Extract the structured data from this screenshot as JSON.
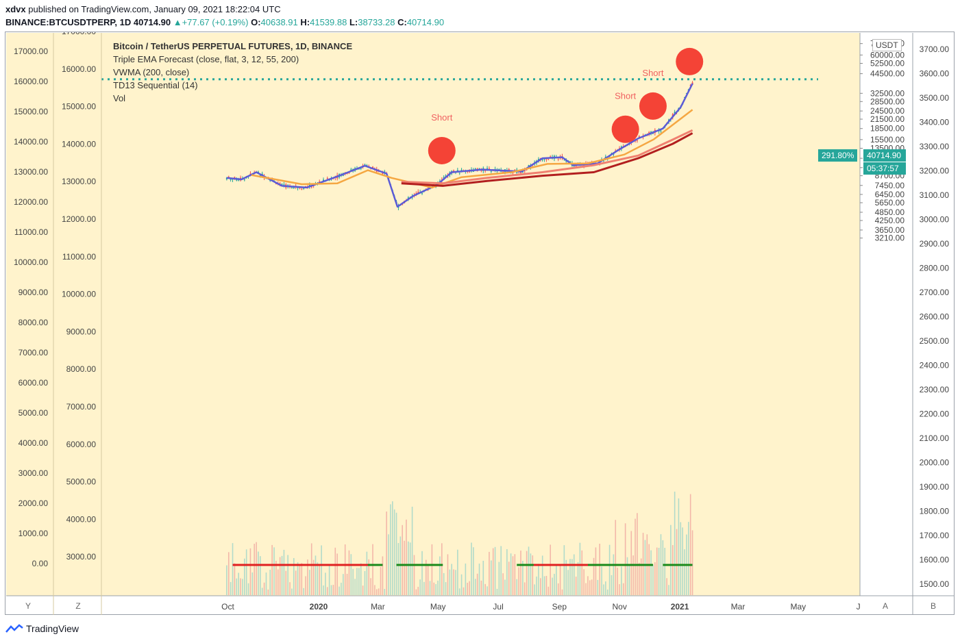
{
  "header": {
    "author": "xdvx",
    "published": "published on TradingView.com, January 09, 2021 18:22:04 UTC",
    "symbol": "BINANCE:BTCUSDTPERP, 1D",
    "last": "40714.90",
    "change": "+77.67 (+0.19%)",
    "open_label": "O:",
    "open": "40638.91",
    "high_label": "H:",
    "high": "41539.88",
    "low_label": "L:",
    "low": "38733.28",
    "close_label": "C:",
    "close": "40714.90"
  },
  "legend": {
    "title": "Bitcoin / TetherUS PERPETUAL FUTURES, 1D, BINANCE",
    "ind1": "Triple EMA Forecast (close, flat, 3, 12, 55, 200)",
    "ind2": "VWMA (200, close)",
    "ind3": "TD13 Sequential (14)",
    "ind4": "Vol"
  },
  "tags": {
    "percent": "291.80%",
    "price": "40714.90",
    "countdown": "05:37:57",
    "currency": "USDT"
  },
  "bottom": {
    "y": "Y",
    "z": "Z",
    "a": "A",
    "b": "B"
  },
  "footer": {
    "logo": "TradingView"
  },
  "colors": {
    "background": "#fff3cc",
    "up": "#26a69a",
    "down": "#ef5350",
    "blue": "#5b5bd6",
    "orange": "#f5a742",
    "salmon": "#f08070",
    "darkred": "#b21f1f",
    "price_line": "#26a69a"
  },
  "chart_data": {
    "type": "line",
    "title": "Bitcoin / TetherUS PERPETUAL FUTURES, 1D, BINANCE",
    "x_ticks": [
      "Oct",
      "2020",
      "Mar",
      "May",
      "Jul",
      "Sep",
      "Nov",
      "2021",
      "Mar",
      "May",
      "J"
    ],
    "left_axis_1": [
      "17000.00",
      "16000.00",
      "15000.00",
      "14000.00",
      "13000.00",
      "12000.00",
      "11000.00",
      "10000.00",
      "9000.00",
      "8000.00",
      "7000.00",
      "6000.00",
      "5000.00",
      "4000.00",
      "3000.00",
      "2000.00",
      "1000.00",
      "0.00"
    ],
    "left_axis_2": [
      "17000.00",
      "16000.00",
      "15000.00",
      "14000.00",
      "13000.00",
      "12000.00",
      "11000.00",
      "10000.00",
      "9000.00",
      "8000.00",
      "7000.00",
      "6000.00",
      "5000.00",
      "4000.00",
      "3000.00"
    ],
    "price_axis_log": [
      "84000.00",
      "72000.00",
      "60000.00",
      "52500.00",
      "44500.00",
      "32500.00",
      "28500.00",
      "24500.00",
      "21500.00",
      "18500.00",
      "15500.00",
      "13500.00",
      "11500.00",
      "9900.00",
      "8700.00",
      "7450.00",
      "6450.00",
      "5650.00",
      "4850.00",
      "4250.00",
      "3650.00",
      "3210.00"
    ],
    "right_axis": [
      "3700.00",
      "3600.00",
      "3500.00",
      "3400.00",
      "3300.00",
      "3200.00",
      "3100.00",
      "3000.00",
      "2900.00",
      "2800.00",
      "2700.00",
      "2600.00",
      "2500.00",
      "2400.00",
      "2300.00",
      "2200.00",
      "2100.00",
      "2000.00",
      "1900.00",
      "1800.00",
      "1700.00",
      "1600.00",
      "1500.00"
    ],
    "series": [
      {
        "name": "Triple EMA Forecast",
        "color": "#5b5bd6",
        "points": [
          [
            "2019-09-25",
            8400
          ],
          [
            "2019-10-10",
            8200
          ],
          [
            "2019-10-25",
            9200
          ],
          [
            "2019-11-20",
            7400
          ],
          [
            "2019-12-15",
            7200
          ],
          [
            "2020-01-15",
            8600
          ],
          [
            "2020-02-12",
            10200
          ],
          [
            "2020-03-05",
            9000
          ],
          [
            "2020-03-16",
            5300
          ],
          [
            "2020-04-01",
            6300
          ],
          [
            "2020-04-25",
            7500
          ],
          [
            "2020-05-10",
            9200
          ],
          [
            "2020-06-10",
            9600
          ],
          [
            "2020-07-20",
            9300
          ],
          [
            "2020-08-10",
            11500
          ],
          [
            "2020-08-30",
            11700
          ],
          [
            "2020-09-10",
            10300
          ],
          [
            "2020-10-05",
            10600
          ],
          [
            "2020-10-25",
            13000
          ],
          [
            "2020-11-15",
            15800
          ],
          [
            "2020-12-10",
            18500
          ],
          [
            "2020-12-28",
            26000
          ],
          [
            "2021-01-09",
            38000
          ]
        ]
      },
      {
        "name": "Triple EMA long",
        "color": "#f5a742",
        "points": [
          [
            "2019-10-20",
            8800
          ],
          [
            "2019-12-10",
            7600
          ],
          [
            "2020-01-15",
            7700
          ],
          [
            "2020-02-15",
            9500
          ],
          [
            "2020-03-10",
            8400
          ],
          [
            "2020-04-20",
            7200
          ],
          [
            "2020-05-20",
            8500
          ],
          [
            "2020-07-10",
            9200
          ],
          [
            "2020-08-15",
            10500
          ],
          [
            "2020-09-25",
            10600
          ],
          [
            "2020-11-01",
            12200
          ],
          [
            "2020-12-01",
            15600
          ],
          [
            "2021-01-09",
            25000
          ]
        ]
      },
      {
        "name": "Salmon EMA",
        "color": "#f08070",
        "points": [
          [
            "2020-03-20",
            7900
          ],
          [
            "2020-05-01",
            7700
          ],
          [
            "2020-06-15",
            8400
          ],
          [
            "2020-08-10",
            9200
          ],
          [
            "2020-10-01",
            10300
          ],
          [
            "2020-11-15",
            12000
          ],
          [
            "2020-12-20",
            15500
          ],
          [
            "2021-01-09",
            18000
          ]
        ]
      },
      {
        "name": "VWMA 200",
        "color": "#b21f1f",
        "points": [
          [
            "2020-03-20",
            7700
          ],
          [
            "2020-05-01",
            7400
          ],
          [
            "2020-06-15",
            8000
          ],
          [
            "2020-08-10",
            8700
          ],
          [
            "2020-10-01",
            9200
          ],
          [
            "2020-11-15",
            11500
          ],
          [
            "2020-12-20",
            14500
          ],
          [
            "2021-01-09",
            17200
          ]
        ]
      }
    ],
    "signals": [
      {
        "label": "Short",
        "date": "2020-04-30",
        "value": 13000
      },
      {
        "label": "Short",
        "date": "2020-11-02",
        "value": 18300
      },
      {
        "label": "Short",
        "date": "2020-11-30",
        "value": 26500
      },
      {
        "label": "Short",
        "date": "2021-01-06",
        "value": 54000
      }
    ],
    "last_price": 40714.9,
    "countdown": "05:37:57"
  }
}
